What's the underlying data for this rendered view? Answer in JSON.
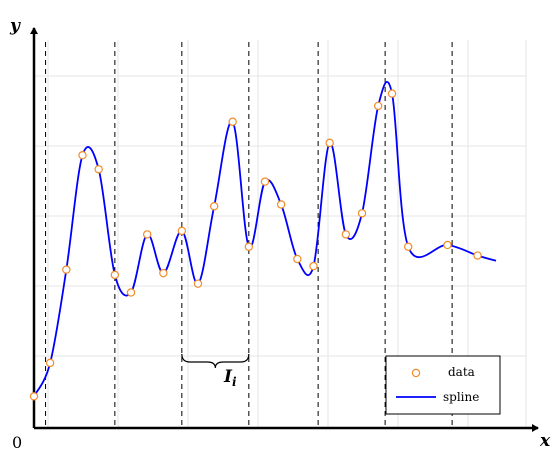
{
  "chart_data": {
    "type": "scatter",
    "title": "",
    "xlabel": "x",
    "ylabel": "y",
    "origin_label": "0",
    "xlim": [
      0,
      100
    ],
    "ylim": [
      0,
      100
    ],
    "grid": true,
    "legend_position": "bottom-right",
    "interval_label": "I",
    "interval_subscript": "i",
    "interval_bracket": [
      32,
      46.5
    ],
    "interval_bounds": [
      2.5,
      17.5,
      32,
      46.5,
      61.5,
      76,
      90.5
    ],
    "series": [
      {
        "name": "data",
        "style": "markers",
        "color": "#f28c28",
        "x": [
          0,
          3.5,
          7,
          10.5,
          14,
          17.5,
          21,
          24.5,
          28,
          32,
          35.5,
          39,
          43,
          46.5,
          50,
          53.5,
          57,
          60.5,
          64,
          67.5,
          71,
          74.5,
          77.5,
          81,
          89.5,
          96
        ],
        "y": [
          9,
          18.5,
          45,
          77.5,
          73.5,
          43.5,
          38.5,
          55,
          44,
          56,
          41,
          63,
          87,
          51.5,
          70,
          63.5,
          48,
          46,
          81,
          55,
          61,
          91.5,
          95,
          51.5,
          52,
          49
        ]
      },
      {
        "name": "spline",
        "style": "line",
        "color": "#0000ff",
        "x": [
          0,
          3.5,
          7,
          10.5,
          14,
          17.5,
          21,
          24.5,
          28,
          32,
          35.5,
          39,
          43,
          46.5,
          50,
          53.5,
          57,
          60.5,
          64,
          67.5,
          71,
          74.5,
          77.5,
          81,
          89.5,
          96,
          100
        ],
        "y": [
          9,
          18.5,
          45,
          77.5,
          73.5,
          43.5,
          38.5,
          55,
          44,
          56,
          41,
          63,
          87,
          51.5,
          70,
          63.5,
          48,
          46,
          81,
          55,
          61,
          91.5,
          95,
          51.5,
          52,
          49,
          47.5
        ]
      }
    ]
  }
}
